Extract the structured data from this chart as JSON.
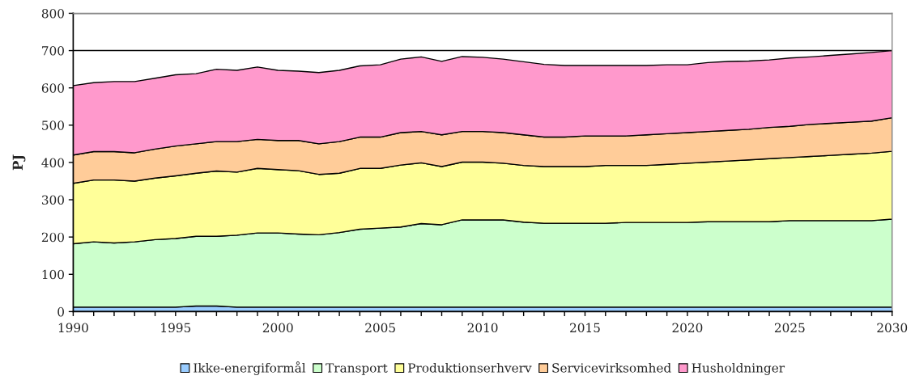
{
  "chart_data": {
    "type": "area",
    "stacked": true,
    "ylabel": "PJ",
    "x": [
      1990,
      1991,
      1992,
      1993,
      1994,
      1995,
      1996,
      1997,
      1998,
      1999,
      2000,
      2001,
      2002,
      2003,
      2004,
      2005,
      2006,
      2007,
      2008,
      2009,
      2010,
      2011,
      2012,
      2013,
      2014,
      2015,
      2016,
      2017,
      2018,
      2019,
      2020,
      2021,
      2022,
      2023,
      2024,
      2025,
      2026,
      2027,
      2028,
      2029,
      2030
    ],
    "series": [
      {
        "name": "Ikke-energiformål",
        "color": "#99ccff",
        "values": [
          12,
          12,
          12,
          12,
          12,
          12,
          15,
          15,
          12,
          12,
          12,
          12,
          12,
          12,
          12,
          12,
          12,
          12,
          12,
          12,
          12,
          12,
          12,
          12,
          12,
          12,
          12,
          12,
          12,
          12,
          12,
          12,
          12,
          12,
          12,
          12,
          12,
          12,
          12,
          12,
          12
        ]
      },
      {
        "name": "Transport",
        "color": "#ccffcc",
        "values": [
          170,
          175,
          172,
          175,
          181,
          184,
          187,
          187,
          193,
          199,
          199,
          196,
          194,
          200,
          209,
          212,
          215,
          224,
          221,
          234,
          234,
          234,
          228,
          225,
          225,
          225,
          225,
          227,
          227,
          227,
          227,
          229,
          229,
          229,
          229,
          232,
          232,
          232,
          232,
          232,
          236
        ]
      },
      {
        "name": "Produktionserhverv",
        "color": "#ffff99",
        "values": [
          162,
          166,
          169,
          163,
          165,
          168,
          169,
          175,
          169,
          173,
          170,
          170,
          162,
          159,
          163,
          160,
          166,
          163,
          156,
          155,
          155,
          152,
          152,
          152,
          152,
          152,
          155,
          153,
          153,
          156,
          159,
          160,
          163,
          166,
          169,
          169,
          172,
          175,
          178,
          181,
          182
        ]
      },
      {
        "name": "Servicevirksomhed",
        "color": "#ffcc99",
        "values": [
          76,
          76,
          76,
          76,
          78,
          80,
          79,
          79,
          82,
          78,
          78,
          81,
          82,
          85,
          84,
          84,
          87,
          84,
          85,
          82,
          82,
          82,
          82,
          79,
          79,
          82,
          79,
          79,
          82,
          82,
          82,
          82,
          82,
          82,
          84,
          84,
          86,
          86,
          86,
          86,
          90
        ]
      },
      {
        "name": "Husholdninger",
        "color": "#ff99cc",
        "values": [
          186,
          185,
          188,
          191,
          190,
          191,
          188,
          194,
          191,
          194,
          188,
          186,
          191,
          191,
          191,
          194,
          197,
          200,
          197,
          201,
          199,
          197,
          196,
          195,
          192,
          189,
          189,
          189,
          186,
          185,
          182,
          185,
          185,
          183,
          181,
          183,
          181,
          182,
          183,
          184,
          180
        ]
      }
    ],
    "xlim": [
      1990,
      2030
    ],
    "xticks": [
      1990,
      {
        "value": 1991,
        "label": null
      },
      {
        "value": 1992,
        "label": null
      },
      {
        "value": 1993,
        "label": null
      },
      {
        "value": 1994,
        "label": null
      },
      1995,
      {
        "value": 1996,
        "label": null
      },
      {
        "value": 1997,
        "label": null
      },
      {
        "value": 1998,
        "label": null
      },
      {
        "value": 1999,
        "label": null
      },
      2000,
      {
        "value": 2001,
        "label": null
      },
      {
        "value": 2002,
        "label": null
      },
      {
        "value": 2003,
        "label": null
      },
      {
        "value": 2004,
        "label": null
      },
      2005,
      {
        "value": 2006,
        "label": null
      },
      {
        "value": 2007,
        "label": null
      },
      {
        "value": 2008,
        "label": null
      },
      {
        "value": 2009,
        "label": null
      },
      2010,
      {
        "value": 2011,
        "label": null
      },
      {
        "value": 2012,
        "label": null
      },
      {
        "value": 2013,
        "label": null
      },
      {
        "value": 2014,
        "label": null
      },
      2015,
      {
        "value": 2016,
        "label": null
      },
      {
        "value": 2017,
        "label": null
      },
      {
        "value": 2018,
        "label": null
      },
      {
        "value": 2019,
        "label": null
      },
      2020,
      {
        "value": 2021,
        "label": null
      },
      {
        "value": 2022,
        "label": null
      },
      {
        "value": 2023,
        "label": null
      },
      {
        "value": 2024,
        "label": null
      },
      2025,
      {
        "value": 2026,
        "label": null
      },
      {
        "value": 2027,
        "label": null
      },
      {
        "value": 2028,
        "label": null
      },
      {
        "value": 2029,
        "label": null
      },
      2030
    ],
    "ylim": [
      0,
      800
    ],
    "yticks": [
      0,
      100,
      200,
      300,
      400,
      500,
      600,
      700,
      800
    ],
    "grid": "y",
    "legend": "bottom"
  }
}
